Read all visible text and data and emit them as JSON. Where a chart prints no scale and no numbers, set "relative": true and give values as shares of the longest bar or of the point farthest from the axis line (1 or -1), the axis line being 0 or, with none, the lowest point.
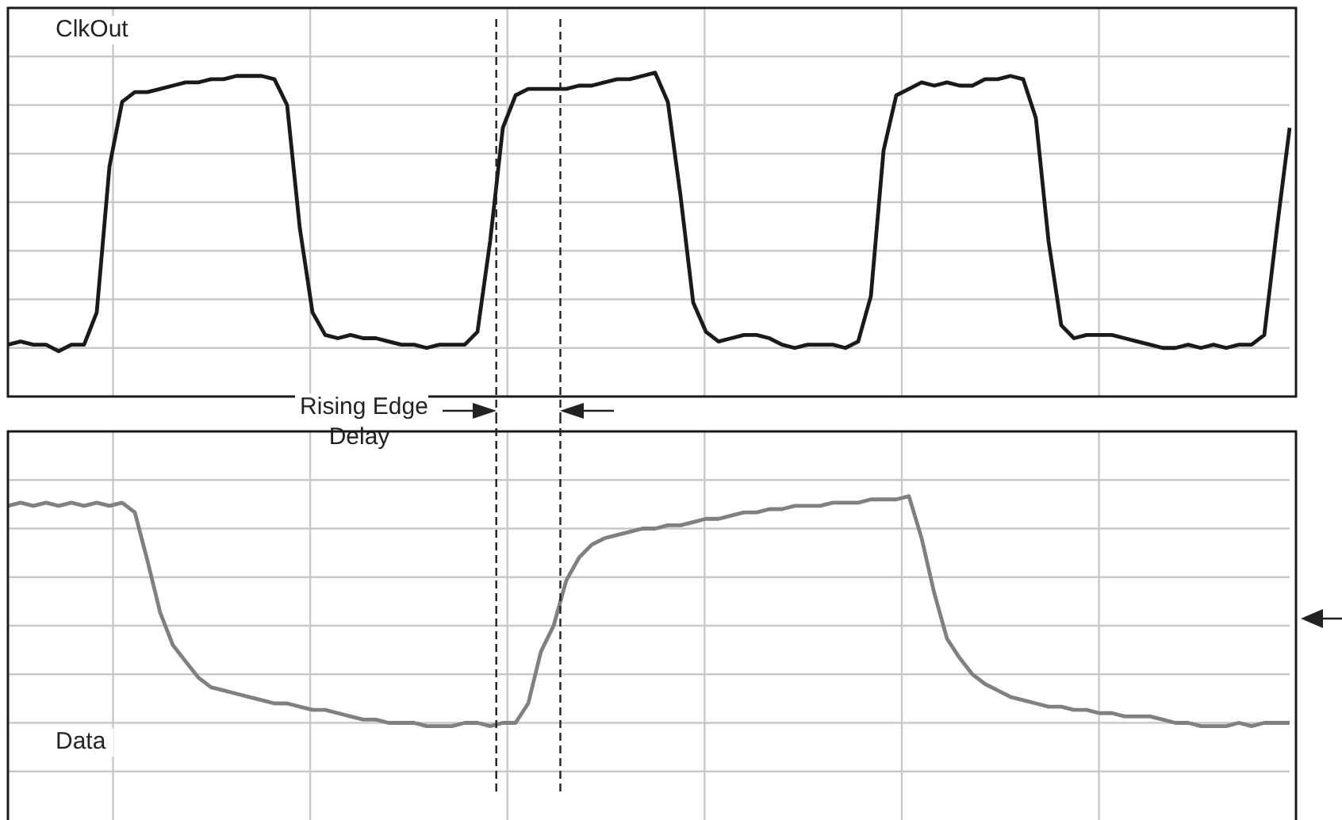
{
  "chart_data": [
    {
      "type": "line",
      "relative": true,
      "grid": true,
      "annotations": [
        "Rising Edge Delay"
      ],
      "categories": [
        null,
        null,
        null,
        null,
        null,
        null,
        null,
        null,
        null,
        null,
        null,
        null,
        null,
        null,
        null,
        null,
        null,
        null,
        null,
        null,
        null,
        null,
        null,
        null,
        null,
        null,
        null,
        null,
        null,
        null,
        null,
        null,
        null,
        null,
        null,
        null,
        null,
        null,
        null,
        null,
        null,
        null,
        null,
        null,
        null,
        null,
        null,
        null,
        null,
        null,
        null,
        null,
        null,
        null,
        null,
        null,
        null,
        null,
        null,
        null,
        null,
        null,
        null,
        null,
        null,
        null,
        null,
        null,
        null,
        null,
        null,
        null,
        null,
        null,
        null,
        null,
        null,
        null,
        null,
        null,
        null,
        null,
        null,
        null,
        null,
        null,
        null,
        null,
        null,
        null,
        null,
        null,
        null,
        null,
        null,
        null,
        null,
        null,
        null,
        null,
        null,
        null
      ],
      "series": [
        {
          "name": "ClkOut",
          "color": "#1a1a1a",
          "values": [
            0.16,
            0.17,
            0.16,
            0.16,
            0.14,
            0.16,
            0.16,
            0.26,
            0.71,
            0.91,
            0.94,
            0.94,
            0.95,
            0.96,
            0.97,
            0.97,
            0.98,
            0.98,
            0.99,
            0.99,
            0.99,
            0.98,
            0.9,
            0.52,
            0.26,
            0.19,
            0.18,
            0.19,
            0.18,
            0.18,
            0.17,
            0.16,
            0.16,
            0.15,
            0.16,
            0.16,
            0.16,
            0.2,
            0.48,
            0.83,
            0.93,
            0.95,
            0.95,
            0.95,
            0.95,
            0.96,
            0.96,
            0.97,
            0.98,
            0.98,
            0.99,
            1.0,
            0.91,
            0.62,
            0.29,
            0.2,
            0.17,
            0.18,
            0.19,
            0.19,
            0.18,
            0.16,
            0.15,
            0.16,
            0.16,
            0.16,
            0.15,
            0.17,
            0.31,
            0.76,
            0.93,
            0.95,
            0.97,
            0.96,
            0.97,
            0.96,
            0.96,
            0.98,
            0.98,
            0.99,
            0.98,
            0.86,
            0.48,
            0.22,
            0.18,
            0.19,
            0.19,
            0.19,
            0.18,
            0.17,
            0.16,
            0.15,
            0.15,
            0.16,
            0.15,
            0.16,
            0.15,
            0.16,
            0.16,
            0.19,
            0.52,
            0.83
          ]
        }
      ]
    },
    {
      "type": "line",
      "relative": true,
      "grid": true,
      "categories": [
        null,
        null,
        null,
        null,
        null,
        null,
        null,
        null,
        null,
        null,
        null,
        null,
        null,
        null,
        null,
        null,
        null,
        null,
        null,
        null,
        null,
        null,
        null,
        null,
        null,
        null,
        null,
        null,
        null,
        null,
        null,
        null,
        null,
        null,
        null,
        null,
        null,
        null,
        null,
        null,
        null,
        null,
        null,
        null,
        null,
        null,
        null,
        null,
        null,
        null,
        null,
        null,
        null,
        null,
        null,
        null,
        null,
        null,
        null,
        null,
        null,
        null,
        null,
        null,
        null,
        null,
        null,
        null,
        null,
        null,
        null,
        null,
        null,
        null,
        null,
        null,
        null,
        null,
        null,
        null,
        null,
        null,
        null,
        null,
        null,
        null,
        null,
        null,
        null,
        null,
        null,
        null,
        null,
        null,
        null,
        null,
        null,
        null,
        null,
        null,
        null,
        null
      ],
      "series": [
        {
          "name": "Data",
          "color": "#808080",
          "values": [
            0.97,
            0.98,
            0.97,
            0.98,
            0.97,
            0.98,
            0.97,
            0.98,
            0.97,
            0.98,
            0.95,
            0.8,
            0.64,
            0.54,
            0.49,
            0.44,
            0.41,
            0.4,
            0.39,
            0.38,
            0.37,
            0.36,
            0.36,
            0.35,
            0.34,
            0.34,
            0.33,
            0.32,
            0.31,
            0.31,
            0.3,
            0.3,
            0.3,
            0.29,
            0.29,
            0.29,
            0.3,
            0.3,
            0.29,
            0.3,
            0.3,
            0.36,
            0.52,
            0.6,
            0.74,
            0.81,
            0.85,
            0.87,
            0.88,
            0.89,
            0.9,
            0.9,
            0.91,
            0.91,
            0.92,
            0.93,
            0.93,
            0.94,
            0.95,
            0.95,
            0.96,
            0.96,
            0.97,
            0.97,
            0.97,
            0.98,
            0.98,
            0.98,
            0.99,
            0.99,
            0.99,
            1.0,
            0.87,
            0.7,
            0.56,
            0.5,
            0.45,
            0.42,
            0.4,
            0.38,
            0.37,
            0.36,
            0.35,
            0.35,
            0.34,
            0.34,
            0.33,
            0.33,
            0.32,
            0.32,
            0.32,
            0.31,
            0.3,
            0.3,
            0.29,
            0.29,
            0.29,
            0.3,
            0.29,
            0.3,
            0.3,
            0.3
          ]
        }
      ]
    }
  ]
}
